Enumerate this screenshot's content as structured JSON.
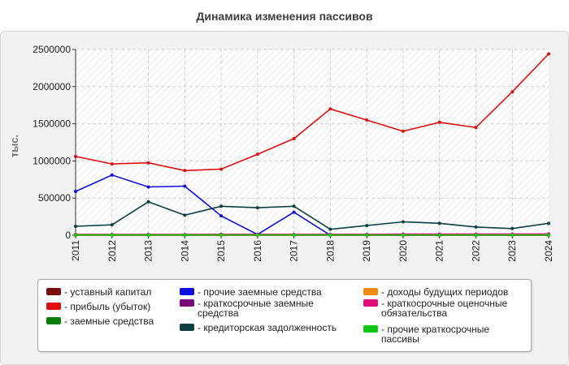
{
  "chart_data": {
    "type": "line",
    "title": "Динамика изменения пассивов",
    "ylabel": "тыс.",
    "xlabel": "",
    "x": [
      "2011",
      "2012",
      "2013",
      "2014",
      "2015",
      "2016",
      "2017",
      "2018",
      "2019",
      "2020",
      "2021",
      "2022",
      "2023",
      "2024"
    ],
    "ylim": [
      0,
      2500000
    ],
    "yticks": [
      0,
      500000,
      1000000,
      1500000,
      2000000,
      2500000
    ],
    "ytick_labels": [
      "0",
      "500000",
      "1000000",
      "1500000",
      "2000000",
      "2500000"
    ],
    "grid": true,
    "legend_position": "bottom",
    "series": [
      {
        "name": "- уставный капитал",
        "color": "#7a0d0d",
        "values": [
          10000,
          10000,
          10000,
          10000,
          10000,
          10000,
          10000,
          10000,
          10000,
          10000,
          10000,
          10000,
          10000,
          10000
        ]
      },
      {
        "name": "- прибыль (убыток)",
        "color": "#e01010",
        "values": [
          1060000,
          960000,
          975000,
          870000,
          890000,
          1090000,
          1300000,
          1700000,
          1550000,
          1400000,
          1520000,
          1450000,
          1930000,
          2440000
        ]
      },
      {
        "name": "- заемные средства",
        "color": "#0b7d0b",
        "values": [
          0,
          0,
          0,
          0,
          0,
          0,
          0,
          0,
          0,
          0,
          0,
          0,
          0,
          0
        ]
      },
      {
        "name": "- прочие заемные средства",
        "color": "#0d0de0",
        "values": [
          590000,
          810000,
          650000,
          660000,
          260000,
          10000,
          310000,
          0,
          0,
          0,
          0,
          0,
          0,
          0
        ]
      },
      {
        "name": "- краткосрочные заемные средства",
        "color": "#7a0a7a",
        "values": [
          0,
          0,
          0,
          0,
          0,
          0,
          0,
          0,
          0,
          0,
          0,
          0,
          0,
          0
        ]
      },
      {
        "name": "- кредиторская задолженность",
        "color": "#0d4040",
        "values": [
          120000,
          140000,
          450000,
          270000,
          390000,
          370000,
          390000,
          80000,
          130000,
          180000,
          160000,
          110000,
          90000,
          160000
        ]
      },
      {
        "name": "- доходы будущих периодов",
        "color": "#f08a10",
        "values": [
          0,
          0,
          0,
          0,
          0,
          0,
          0,
          0,
          0,
          0,
          0,
          0,
          0,
          0
        ]
      },
      {
        "name": "- краткосрочные оценочные обязательства",
        "color": "#e0107a",
        "values": [
          5000,
          8000,
          8000,
          8000,
          12000,
          10000,
          10000,
          10000,
          12000,
          15000,
          15000,
          15000,
          15000,
          18000
        ]
      },
      {
        "name": "- прочие краткосрочные пассивы",
        "color": "#10c810",
        "values": [
          3000,
          3000,
          3000,
          3000,
          3000,
          3000,
          3000,
          3000,
          3000,
          3000,
          3000,
          3000,
          3000,
          3000
        ]
      }
    ]
  }
}
